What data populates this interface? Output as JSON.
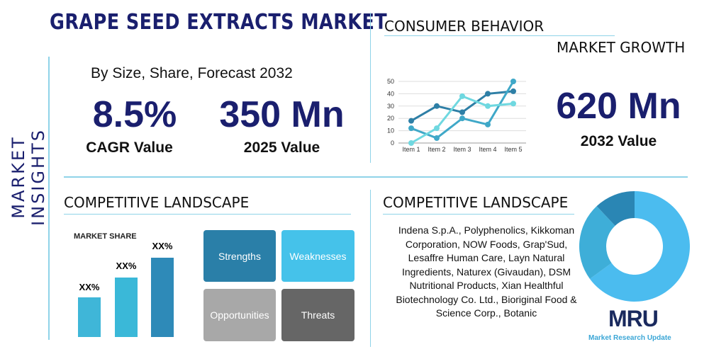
{
  "title": "GRAPE SEED EXTRACTS MARKET",
  "side_title": "MARKET INSIGHTS",
  "subtitle": "By Size, Share, Forecast 2032",
  "cagr": {
    "value": "8.5%",
    "label": "CAGR Value"
  },
  "value_2025": {
    "value": "350 Mn",
    "label": "2025 Value"
  },
  "value_2032": {
    "value": "620 Mn",
    "label": "2032 Value"
  },
  "consumer_behavior": "CONSUMER BEHAVIOR",
  "market_growth": "MARKET GROWTH",
  "competitive_left": "COMPETITIVE LANDSCAPE",
  "competitive_right": "COMPETITIVE LANDSCAPE",
  "market_share": {
    "title": "MARKET SHARE",
    "labels": [
      "XX%",
      "XX%",
      "XX%"
    ]
  },
  "swot": {
    "strengths": "Strengths",
    "weaknesses": "Weaknesses",
    "opportunities": "Opportunities",
    "threats": "Threats"
  },
  "companies": "Indena S.p.A., Polyphenolics, Kikkoman Corporation, NOW Foods, Grap'Sud, Lesaffre Human Care, Layn Natural Ingredients, Naturex (Givaudan), DSM Nutritional Products, Xian Healthful Biotechnology Co. Ltd., Bioriginal Food & Science Corp., Botanic",
  "logo": {
    "text": "MRU",
    "tagline": "Market Research Update"
  },
  "colors": {
    "navy": "#1a1f6e",
    "dark": "#2a7aa0",
    "mid": "#3fa8c8",
    "light": "#6fd8e0"
  },
  "chart_data": [
    {
      "type": "line",
      "categories": [
        "Item 1",
        "Item 2",
        "Item 3",
        "Item 4",
        "Item 5"
      ],
      "ylim": [
        0,
        50
      ],
      "yticks": [
        0,
        10,
        20,
        30,
        40,
        50
      ],
      "grid": true,
      "series": [
        {
          "values": [
            18,
            30,
            25,
            40,
            42
          ],
          "color": "#2e7fa6"
        },
        {
          "values": [
            12,
            4,
            20,
            15,
            50
          ],
          "color": "#3fa8c8"
        },
        {
          "values": [
            0,
            12,
            38,
            30,
            32
          ],
          "color": "#6fd8e0"
        }
      ]
    },
    {
      "type": "pie",
      "donut": true,
      "values": [
        65,
        23,
        12
      ],
      "colors": [
        "#4bbcef",
        "#3eaed8",
        "#2a86b4"
      ]
    }
  ]
}
